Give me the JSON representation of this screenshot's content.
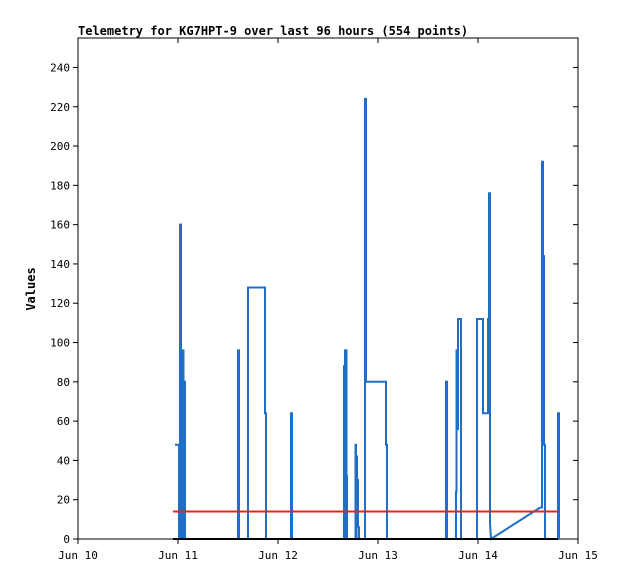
{
  "chart_data": {
    "type": "line",
    "title": "Telemetry for KG7HPT-9 over last 96 hours (554 points)",
    "xlabel": "",
    "ylabel": "Values",
    "x_unit": "day",
    "xlim": [
      10,
      15
    ],
    "ylim": [
      0,
      255
    ],
    "x_ticks": [
      10,
      11,
      12,
      13,
      14,
      15
    ],
    "x_tick_labels": [
      "Jun 10",
      "Jun 11",
      "Jun 12",
      "Jun 13",
      "Jun 14",
      "Jun 15"
    ],
    "y_ticks": [
      0,
      20,
      40,
      60,
      80,
      100,
      120,
      140,
      160,
      180,
      200,
      220,
      240
    ],
    "grid": false,
    "legend": "none",
    "series": [
      {
        "color": "#1f6fc6",
        "points": [
          [
            10.97,
            48
          ],
          [
            11.01,
            48
          ],
          [
            11.01,
            0
          ],
          [
            11.02,
            0
          ],
          [
            11.02,
            160
          ],
          [
            11.03,
            160
          ],
          [
            11.03,
            0
          ],
          [
            11.035,
            0
          ],
          [
            11.035,
            64
          ],
          [
            11.04,
            64
          ],
          [
            11.04,
            0
          ],
          [
            11.045,
            0
          ],
          [
            11.045,
            96
          ],
          [
            11.055,
            96
          ],
          [
            11.055,
            0
          ],
          [
            11.065,
            0
          ],
          [
            11.065,
            80
          ],
          [
            11.07,
            80
          ],
          [
            11.07,
            0
          ],
          [
            11.6,
            0
          ],
          [
            11.6,
            96
          ],
          [
            11.61,
            96
          ],
          [
            11.61,
            0
          ],
          [
            11.7,
            0
          ],
          [
            11.7,
            128
          ],
          [
            11.87,
            128
          ],
          [
            11.87,
            64
          ],
          [
            11.88,
            64
          ],
          [
            11.88,
            0
          ],
          [
            12.13,
            0
          ],
          [
            12.13,
            64
          ],
          [
            12.14,
            64
          ],
          [
            12.14,
            0
          ],
          [
            12.66,
            0
          ],
          [
            12.66,
            88
          ],
          [
            12.665,
            88
          ],
          [
            12.665,
            0
          ],
          [
            12.67,
            0
          ],
          [
            12.67,
            96
          ],
          [
            12.685,
            96
          ],
          [
            12.685,
            32
          ],
          [
            12.69,
            32
          ],
          [
            12.69,
            0
          ],
          [
            12.775,
            0
          ],
          [
            12.775,
            48
          ],
          [
            12.78,
            48
          ],
          [
            12.78,
            0
          ],
          [
            12.785,
            0
          ],
          [
            12.785,
            42
          ],
          [
            12.79,
            42
          ],
          [
            12.79,
            30
          ],
          [
            12.8,
            30
          ],
          [
            12.8,
            6
          ],
          [
            12.81,
            6
          ],
          [
            12.81,
            0
          ],
          [
            12.87,
            0
          ],
          [
            12.87,
            224
          ],
          [
            12.88,
            224
          ],
          [
            12.88,
            80
          ],
          [
            13.08,
            80
          ],
          [
            13.08,
            48
          ],
          [
            13.09,
            48
          ],
          [
            13.09,
            0
          ],
          [
            13.68,
            0
          ],
          [
            13.68,
            80
          ],
          [
            13.69,
            80
          ],
          [
            13.69,
            0
          ],
          [
            13.78,
            0
          ],
          [
            13.78,
            24
          ],
          [
            13.785,
            24
          ],
          [
            13.785,
            96
          ],
          [
            13.79,
            96
          ],
          [
            13.79,
            56
          ],
          [
            13.8,
            56
          ],
          [
            13.8,
            112
          ],
          [
            13.83,
            112
          ],
          [
            13.83,
            0
          ],
          [
            13.99,
            0
          ],
          [
            13.99,
            112
          ],
          [
            14.05,
            112
          ],
          [
            14.05,
            64
          ],
          [
            14.1,
            64
          ],
          [
            14.1,
            112
          ],
          [
            14.11,
            112
          ],
          [
            14.11,
            176
          ],
          [
            14.12,
            176
          ],
          [
            14.12,
            8
          ],
          [
            14.13,
            0
          ],
          [
            14.62,
            16
          ],
          [
            14.64,
            16
          ],
          [
            14.64,
            192
          ],
          [
            14.65,
            192
          ],
          [
            14.65,
            144
          ],
          [
            14.66,
            144
          ],
          [
            14.66,
            48
          ],
          [
            14.67,
            48
          ],
          [
            14.67,
            0
          ],
          [
            14.8,
            0
          ],
          [
            14.8,
            64
          ],
          [
            14.81,
            64
          ],
          [
            14.81,
            0
          ]
        ]
      },
      {
        "color": "#e8251b",
        "points": [
          [
            10.95,
            14
          ],
          [
            14.8,
            14
          ]
        ]
      },
      {
        "color": "#000000",
        "points": [
          [
            10.95,
            0
          ],
          [
            14.8,
            0
          ]
        ]
      }
    ]
  }
}
